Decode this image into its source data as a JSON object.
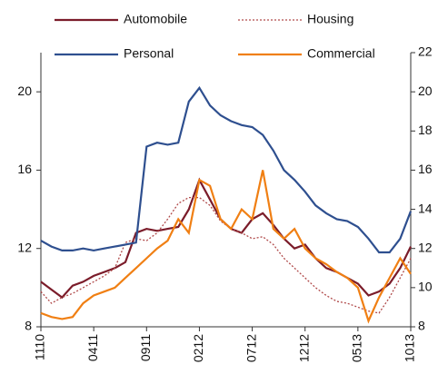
{
  "chart_data": {
    "type": "line",
    "categories": [
      "1110",
      null,
      null,
      null,
      null,
      "0411",
      null,
      null,
      null,
      null,
      "0911",
      null,
      null,
      null,
      null,
      "0212",
      null,
      null,
      null,
      null,
      "0712",
      null,
      null,
      null,
      null,
      "1212",
      null,
      null,
      null,
      null,
      "0513",
      null,
      null,
      null,
      null,
      "1013"
    ],
    "series": [
      {
        "name": "Automobile",
        "color": "#7b1c2a",
        "style": "solid",
        "values": [
          10.3,
          9.9,
          9.5,
          10.1,
          10.3,
          10.6,
          10.8,
          11.0,
          11.3,
          12.8,
          13.0,
          12.9,
          13.0,
          13.1,
          14.0,
          15.5,
          14.5,
          13.5,
          13.0,
          12.8,
          13.5,
          13.8,
          13.2,
          12.5,
          12.0,
          12.2,
          11.5,
          11.0,
          10.8,
          10.5,
          10.2,
          9.6,
          9.8,
          10.2,
          11.0,
          12.1
        ]
      },
      {
        "name": "Housing",
        "color": "#b04a4a",
        "style": "dotted",
        "values": [
          9.8,
          9.2,
          9.5,
          9.7,
          10.0,
          10.3,
          10.6,
          11.0,
          12.3,
          12.5,
          12.4,
          12.8,
          13.5,
          14.3,
          14.6,
          14.6,
          14.2,
          13.4,
          13.0,
          12.8,
          12.5,
          12.6,
          12.2,
          11.5,
          11.0,
          10.5,
          10.0,
          9.6,
          9.3,
          9.2,
          9.0,
          8.8,
          8.7,
          9.5,
          10.5,
          11.5
        ]
      },
      {
        "name": "Personal",
        "color": "#2e4f8f",
        "style": "solid",
        "values": [
          12.4,
          12.1,
          11.9,
          11.9,
          12.0,
          11.9,
          12.0,
          12.1,
          12.2,
          12.3,
          17.2,
          17.4,
          17.3,
          17.4,
          19.5,
          20.2,
          19.3,
          18.8,
          18.5,
          18.3,
          18.2,
          17.8,
          17.0,
          16.0,
          15.5,
          14.9,
          14.2,
          13.8,
          13.5,
          13.4,
          13.1,
          12.5,
          11.8,
          11.8,
          12.5,
          13.9
        ]
      },
      {
        "name": "Commercial",
        "color": "#f07f13",
        "style": "solid",
        "values": [
          8.7,
          8.5,
          8.4,
          8.5,
          9.2,
          9.6,
          9.8,
          10.0,
          10.5,
          11.0,
          11.5,
          12.0,
          12.4,
          13.5,
          12.8,
          15.5,
          15.2,
          13.5,
          13.0,
          14.0,
          13.5,
          16.0,
          13.0,
          12.5,
          13.0,
          12.0,
          11.5,
          11.2,
          10.8,
          10.5,
          10.0,
          8.3,
          9.5,
          10.5,
          11.5,
          10.7
        ]
      }
    ],
    "ylim": [
      8,
      22
    ],
    "yticks": [
      8,
      12,
      16,
      20
    ],
    "y2lim": [
      8,
      22
    ],
    "y2ticks": [
      8,
      10,
      12,
      14,
      16,
      18,
      20,
      22
    ],
    "grid": false,
    "legend": "top"
  }
}
